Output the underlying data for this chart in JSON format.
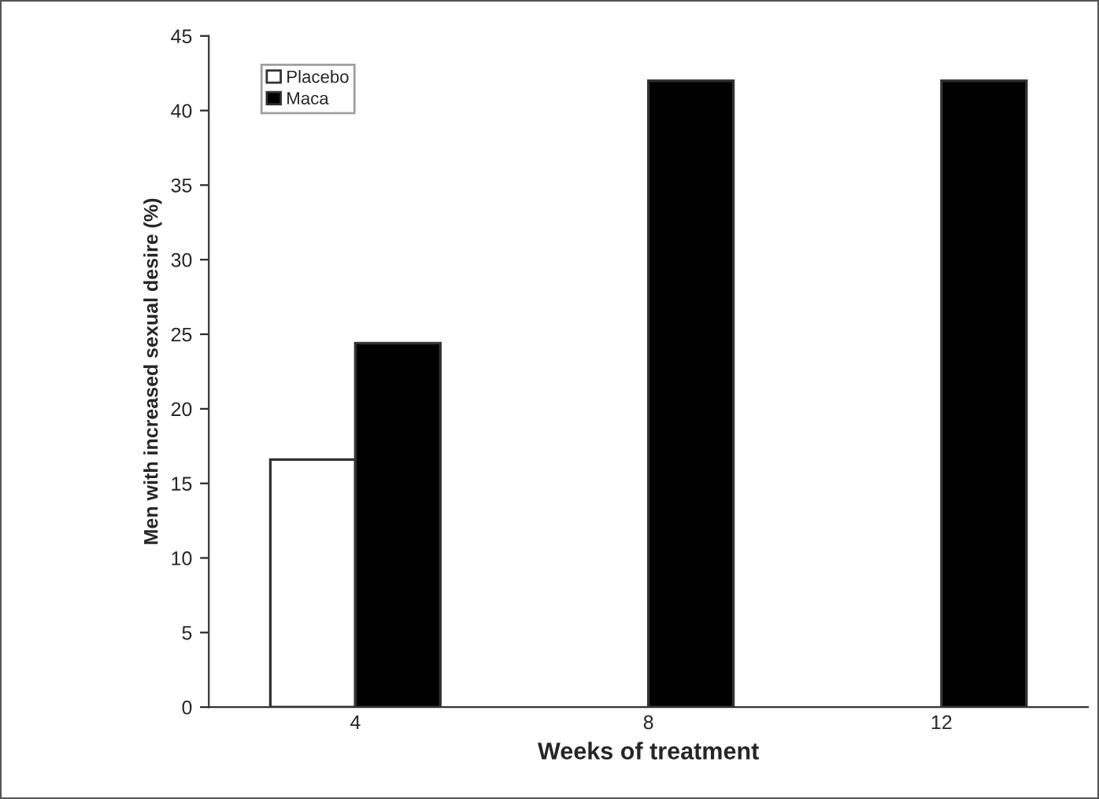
{
  "chart_data": {
    "type": "bar",
    "xlabel": "Weeks of treatment",
    "ylabel": "Men with increased sexual desire (%)",
    "categories": [
      "4",
      "8",
      "12"
    ],
    "series": [
      {
        "name": "Placebo",
        "color": "#ffffff",
        "values": [
          16.6,
          null,
          null
        ]
      },
      {
        "name": "Maca",
        "color": "#000000",
        "values": [
          24.4,
          42,
          42
        ]
      }
    ],
    "ylim": [
      0,
      45
    ],
    "yticks": [
      0,
      5,
      10,
      15,
      20,
      25,
      30,
      35,
      40,
      45
    ],
    "grid": false,
    "legend": "top left"
  }
}
